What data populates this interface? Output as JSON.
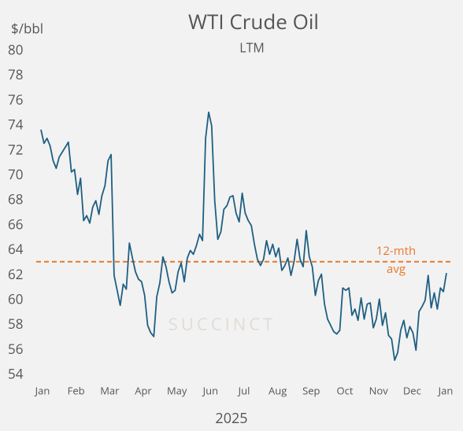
{
  "chart_data": {
    "type": "line",
    "title": "WTI Crude Oil",
    "subtitle": "LTM",
    "y_label": "$/bbl",
    "x_label": "2025",
    "watermark": "SUCCINCT",
    "x_labels": [
      "Jan",
      "Feb",
      "Mar",
      "Apr",
      "May",
      "Jun",
      "Jul",
      "Aug",
      "Sep",
      "Oct",
      "Nov",
      "Dec",
      "Jan"
    ],
    "ylim": [
      54,
      80
    ],
    "yticks": [
      54,
      56,
      58,
      60,
      62,
      64,
      66,
      68,
      70,
      72,
      74,
      76,
      78,
      80
    ],
    "series": [
      {
        "name": "WTI",
        "color": "#1f5f82",
        "values": [
          73.7,
          72.6,
          73.0,
          72.4,
          71.2,
          70.6,
          71.5,
          71.9,
          72.3,
          72.7,
          70.3,
          70.5,
          68.5,
          69.8,
          66.4,
          66.8,
          66.2,
          67.5,
          68.0,
          66.9,
          68.4,
          69.2,
          71.2,
          71.7,
          62.0,
          60.8,
          59.6,
          61.3,
          60.9,
          64.6,
          63.4,
          62.3,
          61.7,
          61.5,
          60.4,
          58.0,
          57.4,
          57.1,
          60.3,
          61.4,
          63.5,
          62.7,
          61.5,
          60.6,
          60.8,
          62.3,
          63.0,
          61.5,
          63.4,
          64.0,
          63.7,
          64.4,
          65.3,
          64.8,
          73.0,
          75.1,
          74.0,
          68.0,
          64.9,
          65.5,
          67.3,
          67.6,
          68.3,
          68.4,
          67.0,
          66.3,
          68.6,
          67.0,
          66.4,
          66.0,
          64.5,
          63.3,
          62.8,
          63.3,
          64.8,
          63.7,
          64.5,
          63.5,
          64.2,
          62.4,
          62.8,
          63.4,
          62.0,
          63.1,
          64.9,
          63.3,
          62.7,
          65.6,
          63.5,
          62.7,
          60.4,
          61.6,
          62.1,
          59.7,
          58.5,
          58.0,
          57.5,
          57.3,
          57.6,
          61.0,
          60.8,
          61.0,
          58.8,
          59.3,
          58.4,
          60.2,
          58.5,
          59.7,
          59.8,
          57.8,
          58.5,
          60.1,
          58.0,
          59.0,
          57.2,
          56.9,
          55.2,
          55.8,
          57.6,
          58.4,
          57.0,
          57.9,
          57.4,
          56.0,
          59.1,
          59.5,
          60.0,
          62.0,
          59.4,
          60.6,
          59.3,
          61.0,
          60.7,
          62.2
        ]
      }
    ],
    "average": {
      "value": 63.1,
      "label": [
        "12-mth",
        "avg"
      ],
      "color": "#e8782a"
    }
  }
}
